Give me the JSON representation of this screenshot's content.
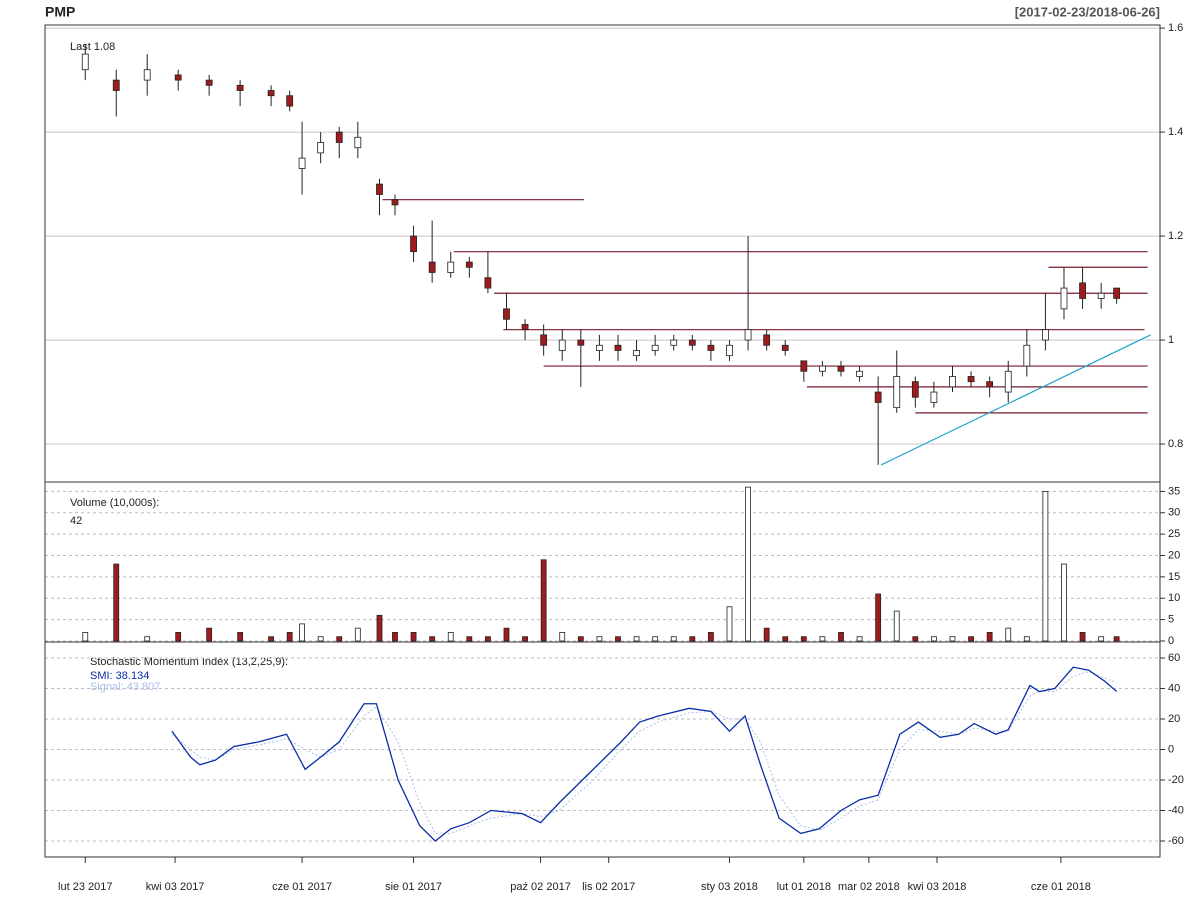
{
  "chart_data": [
    {
      "type": "candlestick",
      "title": "PMP",
      "subtitle": "[2017-02-23/2018-06-26]",
      "annotation": "Last 1.08",
      "x": [
        0,
        10,
        20,
        30,
        40,
        50,
        60,
        66,
        70,
        76,
        82,
        88,
        95,
        100,
        106,
        112,
        118,
        124,
        130,
        136,
        142,
        148,
        154,
        160,
        166,
        172,
        178,
        184,
        190,
        196,
        202,
        208,
        214,
        220,
        226,
        232,
        238,
        244,
        250,
        256,
        262,
        268,
        274,
        280,
        286,
        292,
        298,
        304,
        310,
        316,
        322,
        328,
        333
      ],
      "open": [
        1.52,
        1.5,
        1.5,
        1.51,
        1.5,
        1.49,
        1.48,
        1.47,
        1.33,
        1.36,
        1.4,
        1.37,
        1.3,
        1.27,
        1.2,
        1.15,
        1.13,
        1.15,
        1.12,
        1.06,
        1.03,
        1.01,
        0.98,
        1.0,
        0.98,
        0.99,
        0.97,
        0.98,
        0.99,
        1.0,
        0.99,
        0.97,
        1.0,
        1.01,
        0.99,
        0.96,
        0.94,
        0.95,
        0.93,
        0.9,
        0.87,
        0.92,
        0.88,
        0.91,
        0.93,
        0.92,
        0.9,
        0.95,
        1.0,
        1.06,
        1.11,
        1.08,
        1.1
      ],
      "high": [
        1.57,
        1.52,
        1.55,
        1.52,
        1.51,
        1.5,
        1.49,
        1.48,
        1.42,
        1.4,
        1.41,
        1.42,
        1.31,
        1.28,
        1.22,
        1.23,
        1.17,
        1.16,
        1.17,
        1.09,
        1.04,
        1.03,
        1.02,
        1.02,
        1.01,
        1.01,
        1.0,
        1.01,
        1.01,
        1.01,
        1.0,
        1.0,
        1.2,
        1.02,
        1.0,
        0.96,
        0.96,
        0.96,
        0.95,
        0.93,
        0.98,
        0.93,
        0.92,
        0.95,
        0.94,
        0.93,
        0.96,
        1.02,
        1.09,
        1.14,
        1.14,
        1.11,
        1.1
      ],
      "low": [
        1.5,
        1.43,
        1.47,
        1.48,
        1.47,
        1.45,
        1.45,
        1.44,
        1.28,
        1.34,
        1.35,
        1.35,
        1.24,
        1.24,
        1.15,
        1.11,
        1.12,
        1.12,
        1.09,
        1.02,
        1.0,
        0.97,
        0.96,
        0.91,
        0.96,
        0.96,
        0.96,
        0.97,
        0.98,
        0.98,
        0.96,
        0.96,
        0.98,
        0.98,
        0.97,
        0.92,
        0.93,
        0.93,
        0.92,
        0.76,
        0.86,
        0.87,
        0.87,
        0.9,
        0.91,
        0.89,
        0.88,
        0.93,
        0.98,
        1.04,
        1.06,
        1.06,
        1.07
      ],
      "close": [
        1.55,
        1.48,
        1.52,
        1.5,
        1.49,
        1.48,
        1.47,
        1.45,
        1.35,
        1.38,
        1.38,
        1.39,
        1.28,
        1.26,
        1.17,
        1.13,
        1.15,
        1.14,
        1.1,
        1.04,
        1.02,
        0.99,
        1.0,
        0.99,
        0.99,
        0.98,
        0.98,
        0.99,
        1.0,
        0.99,
        0.98,
        0.99,
        1.02,
        0.99,
        0.98,
        0.94,
        0.95,
        0.94,
        0.94,
        0.88,
        0.93,
        0.89,
        0.9,
        0.93,
        0.92,
        0.91,
        0.94,
        0.99,
        1.02,
        1.1,
        1.08,
        1.09,
        1.08
      ],
      "up_color": "#ffffff",
      "down_color": "#a01c1c",
      "levels": [
        {
          "y": 1.27,
          "x": [
            96,
            161
          ]
        },
        {
          "y": 1.17,
          "x": [
            119,
            343
          ]
        },
        {
          "y": 1.14,
          "x": [
            311,
            343
          ]
        },
        {
          "y": 1.09,
          "x": [
            132,
            343
          ]
        },
        {
          "y": 1.02,
          "x": [
            135,
            342
          ]
        },
        {
          "y": 0.95,
          "x": [
            148,
            343
          ]
        },
        {
          "y": 0.91,
          "x": [
            233,
            343
          ]
        },
        {
          "y": 0.86,
          "x": [
            268,
            343
          ]
        }
      ],
      "level_color": "#7a1a2a",
      "trend": {
        "x": [
          257,
          344
        ],
        "y": [
          0.76,
          1.01
        ],
        "color": "#1e9fd0"
      },
      "xlim": [
        -13,
        347
      ],
      "ylim": [
        0.727,
        1.606
      ],
      "yticks": [
        0.8,
        1.0,
        1.2,
        1.4,
        1.6
      ],
      "grid": true
    },
    {
      "type": "bar",
      "title": "Volume (10,000s):",
      "annotation": "42",
      "x": [
        0,
        10,
        20,
        30,
        40,
        50,
        60,
        66,
        70,
        76,
        82,
        88,
        95,
        100,
        106,
        112,
        118,
        124,
        130,
        136,
        142,
        148,
        154,
        160,
        166,
        172,
        178,
        184,
        190,
        196,
        202,
        208,
        214,
        220,
        226,
        232,
        238,
        244,
        250,
        256,
        262,
        268,
        274,
        280,
        286,
        292,
        298,
        304,
        310,
        316,
        322,
        328,
        333
      ],
      "values": [
        2,
        18,
        1,
        2,
        3,
        2,
        1,
        2,
        4,
        1,
        1,
        3,
        6,
        2,
        2,
        1,
        2,
        1,
        1,
        3,
        1,
        19,
        2,
        1,
        1,
        1,
        1,
        1,
        1,
        1,
        2,
        8,
        36,
        3,
        1,
        1,
        1,
        2,
        1,
        11,
        7,
        1,
        1,
        1,
        1,
        2,
        3,
        1,
        35,
        18,
        2,
        1,
        1
      ],
      "xlim": [
        -13,
        347
      ],
      "ylim": [
        -0.24,
        37.2
      ],
      "yticks": [
        0,
        5,
        10,
        15,
        20,
        25,
        30,
        35
      ],
      "grid": true
    },
    {
      "type": "line",
      "title": "Stochastic Momentum Index (13,2,25,9):",
      "x": [
        28,
        34,
        37,
        42,
        48,
        56,
        65,
        71,
        76,
        82,
        90,
        94,
        101,
        108,
        113,
        118,
        124,
        131,
        141,
        147,
        153,
        163,
        173,
        179,
        185,
        195,
        202,
        208,
        213,
        218,
        224,
        231,
        237,
        244,
        250,
        256,
        263,
        269,
        276,
        282,
        287,
        294,
        298,
        305,
        308,
        313,
        319,
        324,
        329,
        333
      ],
      "series": [
        {
          "name": "SMI: 38.134",
          "color": "#0a2ea8",
          "values": [
            12,
            -5,
            -10,
            -7,
            2,
            5,
            10,
            -13,
            -5,
            5,
            30,
            30,
            -20,
            -50,
            -60,
            -52,
            -48,
            -40,
            -42,
            -48,
            -35,
            -15,
            5,
            18,
            22,
            27,
            25,
            12,
            22,
            -10,
            -45,
            -55,
            -52,
            -40,
            -33,
            -30,
            10,
            18,
            8,
            10,
            17,
            10,
            13,
            42,
            38,
            40,
            54,
            52,
            45,
            38.134
          ]
        },
        {
          "name": "Signal: 43.807",
          "color": "#a9bff0",
          "values": [
            10,
            0,
            -5,
            -7,
            0,
            3,
            7,
            0,
            -5,
            0,
            22,
            28,
            5,
            -35,
            -55,
            -55,
            -50,
            -45,
            -42,
            -44,
            -40,
            -22,
            0,
            12,
            18,
            24,
            25,
            20,
            20,
            5,
            -30,
            -50,
            -53,
            -45,
            -37,
            -33,
            0,
            13,
            12,
            10,
            14,
            12,
            12,
            35,
            38,
            38,
            48,
            51,
            47,
            43.807
          ]
        }
      ],
      "xlim": [
        -13,
        347
      ],
      "ylim": [
        -70.5,
        70.5
      ],
      "yticks": [
        -60,
        -40,
        -20,
        0,
        20,
        40,
        60
      ],
      "grid": true,
      "xticks": [
        {
          "value": 0,
          "label": "lut 23 2017"
        },
        {
          "value": 29,
          "label": "kwi 03 2017"
        },
        {
          "value": 70,
          "label": "cze 01 2017"
        },
        {
          "value": 106,
          "label": "sie 01 2017"
        },
        {
          "value": 147,
          "label": "paź 02 2017"
        },
        {
          "value": 169,
          "label": "lis 02 2017"
        },
        {
          "value": 208,
          "label": "sty 03 2018"
        },
        {
          "value": 232,
          "label": "lut 01 2018"
        },
        {
          "value": 253,
          "label": "mar 02 2018"
        },
        {
          "value": 275,
          "label": "kwi 03 2018"
        },
        {
          "value": 315,
          "label": "cze 01 2018"
        }
      ]
    }
  ]
}
